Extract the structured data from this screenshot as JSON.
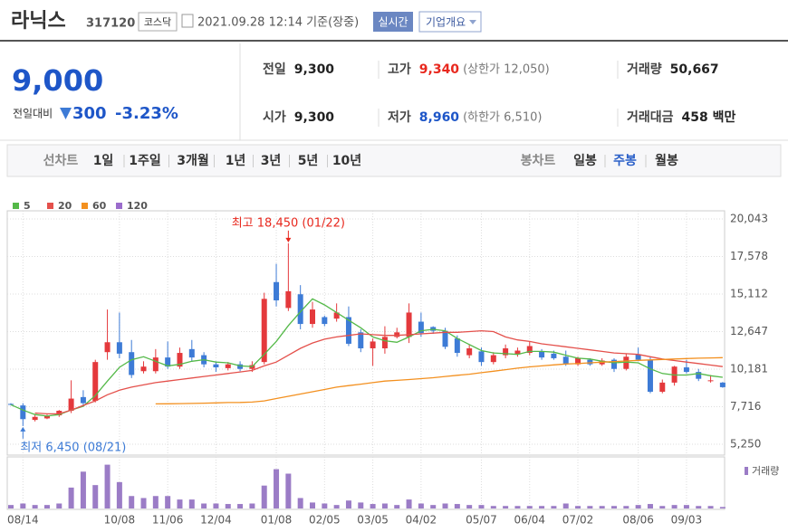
{
  "header": {
    "name": "라닉스",
    "code": "317120",
    "market": "코스닥",
    "datetime": "2021.09.28 12:14 기준(장중)",
    "buttons": [
      "실시간",
      "기업개요"
    ]
  },
  "price": {
    "current": "9,000",
    "change_label": "전일대비",
    "change": "300",
    "change_rate": "-3.23%"
  },
  "summary": [
    [
      {
        "label": "전일",
        "value": "9,300"
      },
      {
        "label": "고가",
        "value": "9,340",
        "note": "(상한가 12,050)",
        "color": "#e8281e"
      },
      {
        "label": "거래량",
        "value": "50,667"
      }
    ],
    [
      {
        "label": "시가",
        "value": "9,300"
      },
      {
        "label": "저가",
        "value": "8,960",
        "note": "(하한가 6,510)",
        "color": "#1e56c8"
      },
      {
        "label": "거래대금",
        "value": "458 백만"
      }
    ]
  ],
  "tabs": {
    "line_label": "선차트",
    "line": [
      "1일",
      "1주일",
      "3개월",
      "1년",
      "3년",
      "5년",
      "10년"
    ],
    "candle_label": "봉차트",
    "candle": [
      "일봉",
      "주봉",
      "월봉"
    ],
    "active_candle": 1
  },
  "chart_data": {
    "type": "candlestick",
    "up_color": "#e4393c",
    "down_color": "#3d7bd6",
    "categories": [
      null,
      "08/14",
      null,
      null,
      null,
      null,
      null,
      null,
      null,
      "10/08",
      null,
      null,
      null,
      "11/06",
      null,
      null,
      null,
      "12/04",
      null,
      null,
      null,
      null,
      "01/08",
      null,
      null,
      null,
      "02/05",
      null,
      null,
      null,
      "03/05",
      null,
      null,
      null,
      "04/02",
      null,
      null,
      null,
      null,
      "05/07",
      null,
      null,
      null,
      "06/04",
      null,
      null,
      null,
      "07/02",
      null,
      null,
      null,
      null,
      "08/06",
      null,
      null,
      null,
      "09/03",
      null,
      null,
      null
    ],
    "open": [
      7900,
      7800,
      6850,
      6950,
      7150,
      7450,
      8350,
      8100,
      11300,
      11950,
      11300,
      10050,
      10050,
      10950,
      10350,
      11500,
      11100,
      10500,
      10250,
      10500,
      10200,
      10650,
      15900,
      14200,
      15100,
      13150,
      13600,
      13500,
      13600,
      12600,
      11550,
      11550,
      12300,
      12300,
      13300,
      12950,
      12700,
      12200,
      11100,
      11350,
      10650,
      11100,
      11150,
      11250,
      11350,
      11200,
      11000,
      10500,
      10800,
      10500,
      10800,
      10200,
      11150,
      10800,
      8700,
      9300,
      10300,
      10000,
      9400,
      9300
    ],
    "high": [
      7950,
      7950,
      7200,
      7200,
      7500,
      9450,
      8800,
      10800,
      14100,
      13900,
      12100,
      10700,
      11500,
      12000,
      11600,
      12100,
      11300,
      10700,
      10650,
      10700,
      10700,
      15200,
      17100,
      18450,
      15700,
      14600,
      13700,
      14500,
      14300,
      12800,
      12200,
      13000,
      12900,
      14500,
      13900,
      13000,
      12900,
      12400,
      11800,
      11600,
      11300,
      11800,
      11600,
      12000,
      11500,
      11400,
      11400,
      11000,
      10900,
      10900,
      10900,
      11200,
      11600,
      11000,
      9500,
      10400,
      10800,
      10200,
      9800,
      9340
    ],
    "low": [
      7800,
      6450,
      6750,
      6900,
      7050,
      7300,
      7800,
      8000,
      10800,
      10900,
      9600,
      9900,
      9900,
      10200,
      10200,
      10700,
      10300,
      10000,
      10100,
      10050,
      10000,
      10500,
      14300,
      14000,
      12800,
      12900,
      13000,
      13300,
      11700,
      11300,
      10400,
      11200,
      12200,
      11900,
      12300,
      12500,
      11500,
      11000,
      10900,
      10400,
      10500,
      10900,
      11000,
      11100,
      10800,
      10800,
      10400,
      10400,
      10400,
      10400,
      10000,
      10100,
      10700,
      8600,
      8600,
      9100,
      9900,
      9400,
      9300,
      8960
    ],
    "close": [
      7850,
      6900,
      7050,
      7100,
      7450,
      8250,
      7950,
      10650,
      11950,
      11200,
      9800,
      10350,
      10950,
      10350,
      11250,
      10950,
      10500,
      10300,
      10500,
      10200,
      10450,
      14800,
      14700,
      15300,
      13150,
      14100,
      13150,
      13900,
      11850,
      11550,
      12000,
      12300,
      12600,
      13900,
      12550,
      12700,
      11650,
      11250,
      11550,
      10650,
      11100,
      11550,
      11400,
      11700,
      10950,
      10900,
      10550,
      10900,
      10500,
      10750,
      10200,
      11000,
      10800,
      8700,
      9300,
      10350,
      10000,
      9550,
      9450,
      9000
    ],
    "series": [
      {
        "name": "5",
        "color": "#54b948",
        "values": [
          7850,
          7500,
          7200,
          7100,
          7200,
          7500,
          7750,
          8450,
          9400,
          10300,
          10800,
          11000,
          10700,
          10400,
          10500,
          10700,
          10800,
          10650,
          10600,
          10400,
          10350,
          11150,
          12000,
          13050,
          13950,
          14800,
          14400,
          13900,
          13400,
          12900,
          12300,
          12050,
          11950,
          12300,
          12700,
          12800,
          12700,
          12200,
          11800,
          11400,
          11250,
          11200,
          11150,
          11350,
          11350,
          11300,
          11100,
          10900,
          10850,
          10700,
          10600,
          10650,
          10600,
          10200,
          9900,
          9800,
          9800,
          9900,
          9750,
          9650
        ]
      },
      {
        "name": "20",
        "color": "#e4504b",
        "values": [
          null,
          null,
          7300,
          7250,
          7250,
          7500,
          7800,
          8100,
          8500,
          8800,
          9000,
          9150,
          9300,
          9400,
          9500,
          9600,
          9700,
          9800,
          9900,
          10000,
          10100,
          10400,
          10650,
          11100,
          11550,
          11900,
          12150,
          12300,
          12400,
          12500,
          12450,
          12400,
          12400,
          12450,
          12500,
          12550,
          12600,
          12600,
          12650,
          12700,
          12650,
          12300,
          12100,
          12000,
          11850,
          11750,
          11650,
          11550,
          11450,
          11350,
          11250,
          11200,
          11150,
          11000,
          10850,
          10750,
          10650,
          10550,
          10450,
          10350
        ]
      },
      {
        "name": "60",
        "color": "#f3901f",
        "values": [
          null,
          null,
          null,
          null,
          null,
          null,
          null,
          null,
          null,
          null,
          null,
          null,
          7900,
          7910,
          7920,
          7930,
          7950,
          7970,
          7990,
          8000,
          8020,
          8100,
          8250,
          8400,
          8550,
          8700,
          8850,
          9000,
          9100,
          9200,
          9300,
          9400,
          9450,
          9500,
          9560,
          9620,
          9700,
          9780,
          9850,
          9950,
          10050,
          10150,
          10250,
          10330,
          10400,
          10460,
          10520,
          10550,
          10600,
          10640,
          10680,
          10720,
          10760,
          10790,
          10820,
          10850,
          10880,
          10900,
          10920,
          10940
        ]
      },
      {
        "name": "120",
        "color": "#9b6ccc",
        "values": [
          null,
          null,
          null,
          null,
          null,
          null,
          null,
          null,
          null,
          null,
          null,
          null,
          null,
          null,
          null,
          null,
          null,
          null,
          null,
          null,
          null,
          null,
          null,
          null,
          null,
          null,
          null,
          null,
          null,
          null,
          null,
          null,
          null,
          null,
          null,
          null,
          null,
          null,
          null,
          null,
          null,
          null,
          null,
          null,
          null,
          null,
          null,
          null,
          null,
          null,
          null,
          null,
          null,
          null,
          null,
          null,
          null,
          null,
          null,
          null
        ]
      }
    ],
    "ylim": [
      4540,
      20580
    ],
    "yticks": [
      {
        "value": 5250,
        "label": "5,250"
      },
      {
        "value": 7716,
        "label": "7,716"
      },
      {
        "value": 10181,
        "label": "10,181"
      },
      {
        "value": 12647,
        "label": "12,647"
      },
      {
        "value": 15112,
        "label": "15,112"
      },
      {
        "value": 17578,
        "label": "17,578"
      },
      {
        "value": 20043,
        "label": "20,043"
      }
    ],
    "grid": true,
    "annotations": [
      {
        "text": "최고 18,450 (01/22)",
        "index": 23,
        "value": 18450,
        "color": "#e8281e",
        "side": "above"
      },
      {
        "text": "최저 6,450 (08/21)",
        "index": 1,
        "value": 6450,
        "color": "#3d7bd6",
        "side": "below"
      }
    ],
    "volume": {
      "name": "거래량",
      "color": "#9b7cc6",
      "ylim": [
        0,
        100
      ],
      "values": [
        7,
        10,
        7,
        7,
        10,
        42,
        74,
        47,
        88,
        53,
        25,
        21,
        25,
        25,
        18,
        18,
        10,
        10,
        9,
        9,
        10,
        46,
        79,
        70,
        21,
        12,
        10,
        7,
        16,
        12,
        9,
        10,
        7,
        18,
        10,
        7,
        10,
        9,
        7,
        7,
        5,
        5,
        5,
        5,
        5,
        5,
        10,
        5,
        5,
        5,
        5,
        5,
        7,
        9,
        5,
        7,
        7,
        5,
        5,
        3
      ]
    }
  }
}
